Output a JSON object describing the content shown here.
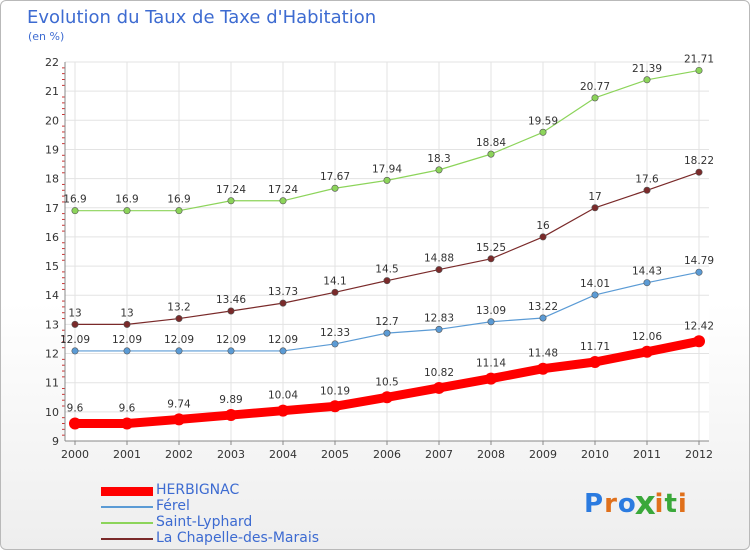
{
  "header": {
    "title": "Evolution du Taux de Taxe d'Habitation",
    "subtitle": "(en %)"
  },
  "logo": {
    "text": "Proxiti",
    "letter_colors": [
      "#2b7be0",
      "#e0701b",
      "#2b7be0",
      "#3aa83a",
      "#e0701b",
      "#3aa83a",
      "#e0701b"
    ]
  },
  "chart_data": {
    "type": "line",
    "title": "Evolution du Taux de Taxe d'Habitation",
    "ylabel": "(en %)",
    "xlabel": "",
    "x": [
      "2000",
      "2001",
      "2002",
      "2003",
      "2004",
      "2005",
      "2006",
      "2007",
      "2008",
      "2009",
      "2010",
      "2011",
      "2012"
    ],
    "ylim": [
      9,
      22
    ],
    "yticks": [
      "9",
      "10",
      "11",
      "12",
      "13",
      "14",
      "15",
      "16",
      "17",
      "18",
      "19",
      "20",
      "21",
      "22"
    ],
    "grid": true,
    "legend_position": "bottom-left",
    "series": [
      {
        "name": "HERBIGNAC",
        "color": "#ff0000",
        "values": [
          9.6,
          9.6,
          9.74,
          9.89,
          10.04,
          10.19,
          10.5,
          10.82,
          11.14,
          11.48,
          11.71,
          12.06,
          12.42
        ],
        "labels": [
          "9.6",
          "9.6",
          "9.74",
          "9.89",
          "10.04",
          "10.19",
          "10.5",
          "10.82",
          "11.14",
          "11.48",
          "11.71",
          "12.06",
          "12.42"
        ],
        "highlight": true
      },
      {
        "name": "Férel",
        "color": "#5b9bd5",
        "values": [
          12.09,
          12.09,
          12.09,
          12.09,
          12.09,
          12.33,
          12.7,
          12.83,
          13.09,
          13.22,
          14.01,
          14.43,
          14.79
        ],
        "labels": [
          "12.09",
          "12.09",
          "12.09",
          "12.09",
          "12.09",
          "12.33",
          "12.7",
          "12.83",
          "13.09",
          "13.22",
          "14.01",
          "14.43",
          "14.79"
        ]
      },
      {
        "name": "Saint-Lyphard",
        "color": "#8cd45a",
        "values": [
          16.9,
          16.9,
          16.9,
          17.24,
          17.24,
          17.67,
          17.94,
          18.3,
          18.84,
          19.59,
          20.77,
          21.39,
          21.71
        ],
        "labels": [
          "16.9",
          "16.9",
          "16.9",
          "17.24",
          "17.24",
          "17.67",
          "17.94",
          "18.3",
          "18.84",
          "19.59",
          "20.77",
          "21.39",
          "21.71"
        ]
      },
      {
        "name": "La Chapelle-des-Marais",
        "color": "#7a2a2a",
        "values": [
          13,
          13,
          13.2,
          13.46,
          13.73,
          14.1,
          14.5,
          14.88,
          15.25,
          16,
          17,
          17.6,
          18.22
        ],
        "labels": [
          "13",
          "13",
          "13.2",
          "13.46",
          "13.73",
          "14.1",
          "14.5",
          "14.88",
          "15.25",
          "16",
          "17",
          "17.6",
          "18.22"
        ]
      }
    ]
  }
}
